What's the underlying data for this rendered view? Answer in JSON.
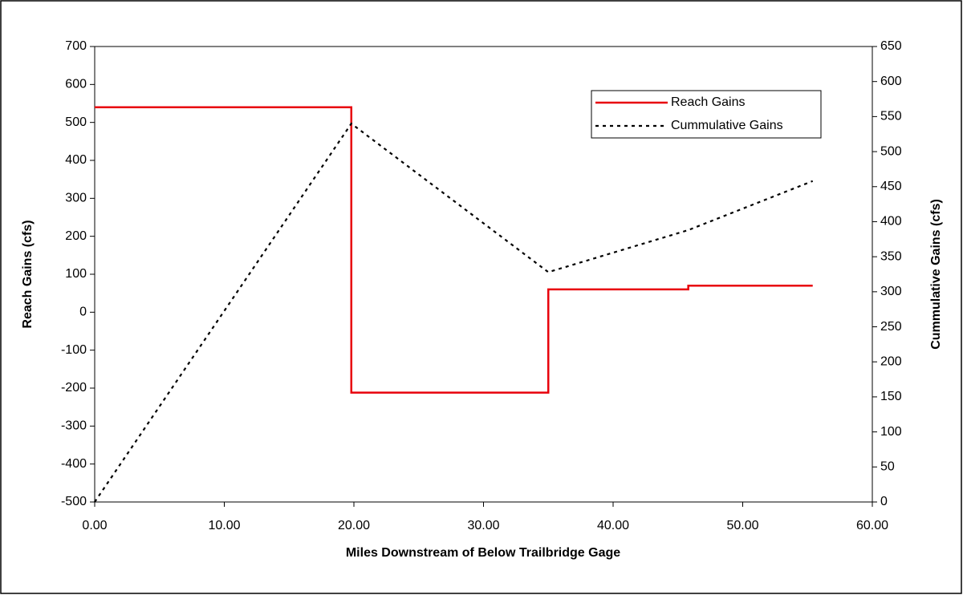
{
  "chart_data": {
    "type": "line",
    "xlabel": "Miles Downstream of Below Trailbridge Gage",
    "ylabel": "Reach Gains (cfs)",
    "y2label": "Cummulative Gains (cfs)",
    "xlim": [
      0,
      60
    ],
    "xticks": [
      {
        "value": 0,
        "label": "0.00"
      },
      {
        "value": 10,
        "label": "10.00"
      },
      {
        "value": 20,
        "label": "20.00"
      },
      {
        "value": 30,
        "label": "30.00"
      },
      {
        "value": 40,
        "label": "40.00"
      },
      {
        "value": 50,
        "label": "50.00"
      },
      {
        "value": 60,
        "label": "60.00"
      }
    ],
    "ylim": [
      -500,
      700
    ],
    "yticks": [
      -500,
      -400,
      -300,
      -200,
      -100,
      0,
      100,
      200,
      300,
      400,
      500,
      600,
      700
    ],
    "y2lim": [
      0,
      650
    ],
    "y2ticks": [
      0,
      50,
      100,
      150,
      200,
      250,
      300,
      350,
      400,
      450,
      500,
      550,
      600,
      650
    ],
    "legend": "upper right",
    "series": [
      {
        "name": "Reach Gains",
        "color": "#e8000b",
        "dash": "solid",
        "x": [
          0,
          19.8,
          19.8,
          35.0,
          35.0,
          45.8,
          45.8,
          55.4
        ],
        "values": [
          540,
          540,
          -212,
          -212,
          60,
          60,
          70,
          70
        ]
      },
      {
        "name": "Cummulative Gains",
        "color": "#000000",
        "dash": "dotted",
        "axis": "y2",
        "x": [
          0,
          19.8,
          35.0,
          45.8,
          55.4
        ],
        "values": [
          0,
          540,
          328,
          388,
          458
        ]
      }
    ]
  }
}
